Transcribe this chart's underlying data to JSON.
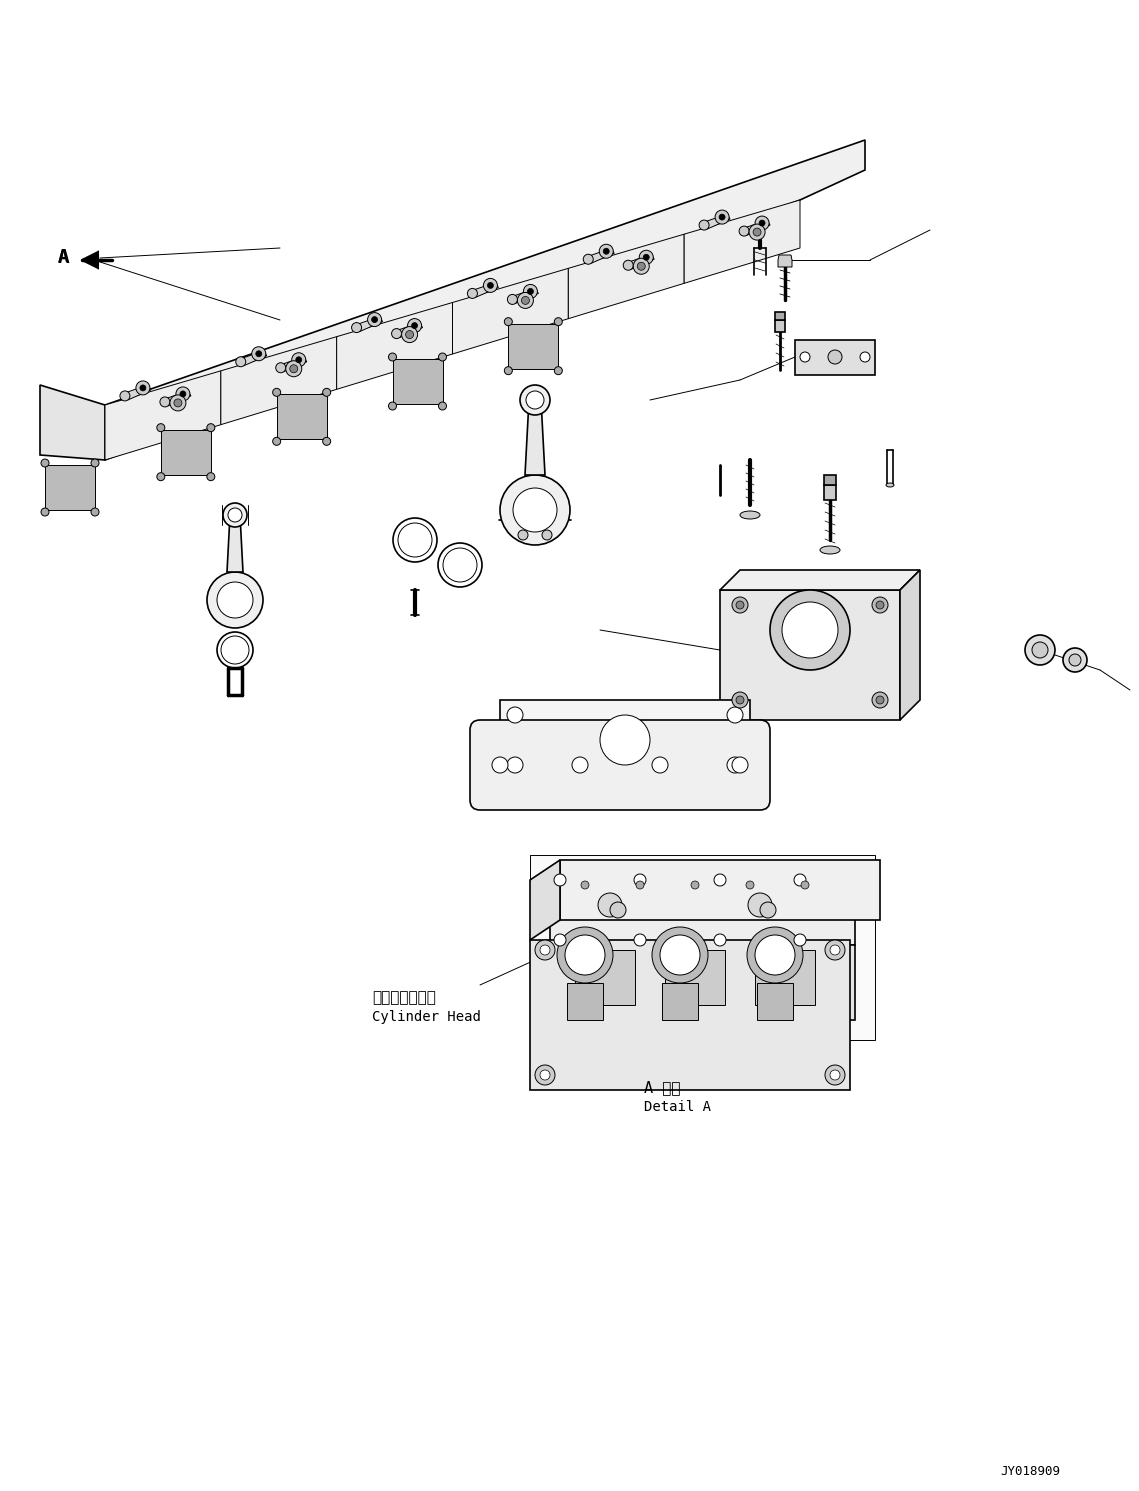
{
  "background_color": "#ffffff",
  "line_color": "#000000",
  "fig_width": 11.39,
  "fig_height": 14.91,
  "dpi": 100,
  "label_A": "A",
  "label_detail": "A 詳細",
  "label_detail_en": "Detail A",
  "label_cylinder_head_jp": "シリンダヘッド",
  "label_cylinder_head_en": "Cylinder Head",
  "label_drawing_number": "JY018909",
  "font_size_label": 10,
  "font_size_small": 8,
  "font_size_drawing": 9
}
